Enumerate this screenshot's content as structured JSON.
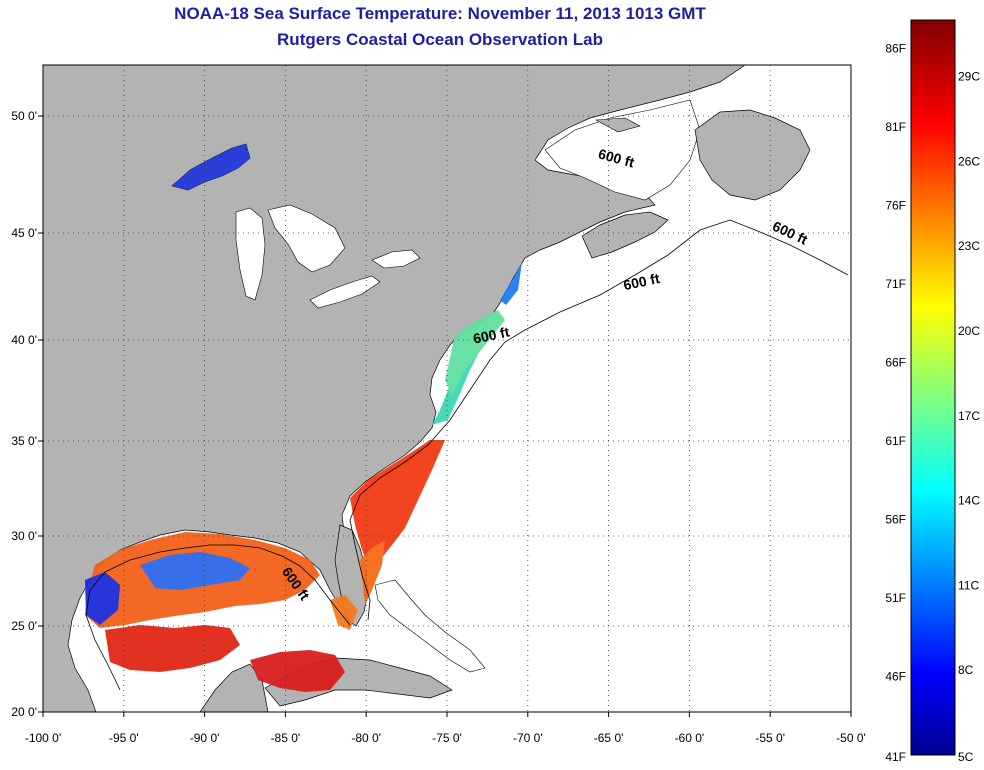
{
  "title": "NOAA-18 Sea Surface Temperature:  November 11, 2013 1013 GMT",
  "subtitle": "Rutgers Coastal Ocean Observation Lab",
  "map": {
    "lon_range": [
      -100,
      -50
    ],
    "lat_range": [
      20,
      52
    ],
    "lon_ticks": [
      {
        "value": -100,
        "label": "-100 0'"
      },
      {
        "value": -95,
        "label": "-95 0'"
      },
      {
        "value": -90,
        "label": "-90 0'"
      },
      {
        "value": -85,
        "label": "-85 0'"
      },
      {
        "value": -80,
        "label": "-80 0'"
      },
      {
        "value": -75,
        "label": "-75 0'"
      },
      {
        "value": -70,
        "label": "-70 0'"
      },
      {
        "value": -65,
        "label": "-65 0'"
      },
      {
        "value": -60,
        "label": "-60 0'"
      },
      {
        "value": -55,
        "label": "-55 0'"
      },
      {
        "value": -50,
        "label": "-50 0'"
      }
    ],
    "lat_ticks": [
      {
        "value": 20,
        "label": "20 0'"
      },
      {
        "value": 25,
        "label": "25 0'"
      },
      {
        "value": 30,
        "label": "30 0'"
      },
      {
        "value": 35,
        "label": "35 0'"
      },
      {
        "value": 40,
        "label": "40 0'"
      },
      {
        "value": 45,
        "label": "45 0'"
      },
      {
        "value": 50,
        "label": "50 0'"
      }
    ],
    "grid": "dotted",
    "land_color": "#b3b3b3",
    "water_color": "#ffffff",
    "isobath_labels": [
      {
        "text": "600 ft",
        "lon": -64.6,
        "lat": 48.0,
        "angle": 15
      },
      {
        "text": "600 ft",
        "lon": -53.9,
        "lat": 44.8,
        "angle": 25
      },
      {
        "text": "600 ft",
        "lon": -62.9,
        "lat": 42.5,
        "angle": -12
      },
      {
        "text": "600 ft",
        "lon": -72.2,
        "lat": 40.0,
        "angle": -12
      },
      {
        "text": "600 ft",
        "lon": -84.6,
        "lat": 27.2,
        "angle": 55
      }
    ]
  },
  "colorbar": {
    "fahrenheit_labels": [
      {
        "f": 86,
        "label": "86F"
      },
      {
        "f": 81,
        "label": "81F"
      },
      {
        "f": 76,
        "label": "76F"
      },
      {
        "f": 71,
        "label": "71F"
      },
      {
        "f": 66,
        "label": "66F"
      },
      {
        "f": 61,
        "label": "61F"
      },
      {
        "f": 56,
        "label": "56F"
      },
      {
        "f": 51,
        "label": "51F"
      },
      {
        "f": 46,
        "label": "46F"
      },
      {
        "f": 41,
        "label": "41F"
      }
    ],
    "celsius_labels": [
      {
        "c": 29,
        "label": "29C"
      },
      {
        "c": 26,
        "label": "26C"
      },
      {
        "c": 23,
        "label": "23C"
      },
      {
        "c": 20,
        "label": "20C"
      },
      {
        "c": 17,
        "label": "17C"
      },
      {
        "c": 14,
        "label": "14C"
      },
      {
        "c": 11,
        "label": "11C"
      },
      {
        "c": 8,
        "label": "8C"
      },
      {
        "c": 5,
        "label": "5C"
      }
    ],
    "colormap": "jet"
  }
}
